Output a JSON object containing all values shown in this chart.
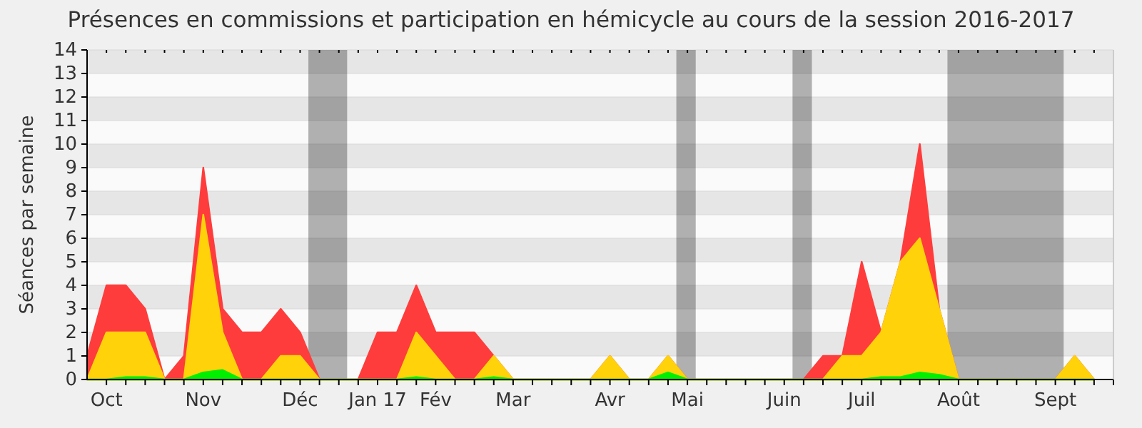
{
  "chart_data": {
    "type": "area",
    "title": "Présences en commissions et participation en hémicycle au cours de la session 2016-2017",
    "ylabel": "Séances par semaine",
    "x": [
      "2016-09-28",
      "2016-10-05",
      "2016-10-12",
      "2016-10-19",
      "2016-10-26",
      "2016-11-02",
      "2016-11-09",
      "2016-11-16",
      "2016-11-23",
      "2016-11-30",
      "2016-12-07",
      "2016-12-14",
      "2016-12-21",
      "2016-12-28",
      "2017-01-04",
      "2017-01-11",
      "2017-01-18",
      "2017-01-25",
      "2017-02-01",
      "2017-02-08",
      "2017-02-15",
      "2017-02-22",
      "2017-03-01",
      "2017-03-08",
      "2017-03-15",
      "2017-03-22",
      "2017-03-29",
      "2017-04-05",
      "2017-04-12",
      "2017-04-19",
      "2017-04-26",
      "2017-05-03",
      "2017-05-10",
      "2017-05-17",
      "2017-05-24",
      "2017-05-31",
      "2017-06-07",
      "2017-06-14",
      "2017-06-21",
      "2017-06-28",
      "2017-07-05",
      "2017-07-12",
      "2017-07-19",
      "2017-07-26",
      "2017-08-02",
      "2017-08-09",
      "2017-08-16",
      "2017-08-23",
      "2017-08-30",
      "2017-09-06",
      "2017-09-13",
      "2017-09-20",
      "2017-09-27"
    ],
    "xlim": [
      "2016-09-28",
      "2017-10-04"
    ],
    "xticks": [
      {
        "value": "2016-10-05",
        "label": "Oct"
      },
      {
        "value": "2016-10-12",
        "label": null
      },
      {
        "value": "2016-10-19",
        "label": null
      },
      {
        "value": "2016-10-26",
        "label": null
      },
      {
        "value": "2016-11-02",
        "label": null
      },
      {
        "value": "2016-11-09",
        "label": "Nov"
      },
      {
        "value": "2016-11-16",
        "label": null
      },
      {
        "value": "2016-11-23",
        "label": null
      },
      {
        "value": "2016-11-30",
        "label": null
      },
      {
        "value": "2016-12-07",
        "label": null
      },
      {
        "value": "2016-12-14",
        "label": "Déc"
      },
      {
        "value": "2016-12-21",
        "label": null
      },
      {
        "value": "2016-12-28",
        "label": null
      },
      {
        "value": "2017-01-04",
        "label": null
      },
      {
        "value": "2017-01-11",
        "label": "Jan 17"
      },
      {
        "value": "2017-01-18",
        "label": null
      },
      {
        "value": "2017-01-25",
        "label": null
      },
      {
        "value": "2017-02-01",
        "label": "Fév"
      },
      {
        "value": "2017-02-08",
        "label": null
      },
      {
        "value": "2017-02-15",
        "label": null
      },
      {
        "value": "2017-02-22",
        "label": null
      },
      {
        "value": "2017-03-01",
        "label": "Mar"
      },
      {
        "value": "2017-03-08",
        "label": null
      },
      {
        "value": "2017-03-15",
        "label": null
      },
      {
        "value": "2017-03-22",
        "label": null
      },
      {
        "value": "2017-03-29",
        "label": null
      },
      {
        "value": "2017-04-05",
        "label": "Avr"
      },
      {
        "value": "2017-04-12",
        "label": null
      },
      {
        "value": "2017-04-19",
        "label": null
      },
      {
        "value": "2017-04-26",
        "label": null
      },
      {
        "value": "2017-05-03",
        "label": "Mai"
      },
      {
        "value": "2017-05-10",
        "label": null
      },
      {
        "value": "2017-05-17",
        "label": null
      },
      {
        "value": "2017-05-24",
        "label": null
      },
      {
        "value": "2017-05-31",
        "label": null
      },
      {
        "value": "2017-06-07",
        "label": "Juin"
      },
      {
        "value": "2017-06-14",
        "label": null
      },
      {
        "value": "2017-06-21",
        "label": null
      },
      {
        "value": "2017-06-28",
        "label": null
      },
      {
        "value": "2017-07-05",
        "label": "Juil"
      },
      {
        "value": "2017-07-12",
        "label": null
      },
      {
        "value": "2017-07-19",
        "label": null
      },
      {
        "value": "2017-07-26",
        "label": null
      },
      {
        "value": "2017-08-02",
        "label": null
      },
      {
        "value": "2017-08-09",
        "label": "Août"
      },
      {
        "value": "2017-08-16",
        "label": null
      },
      {
        "value": "2017-08-23",
        "label": null
      },
      {
        "value": "2017-08-30",
        "label": null
      },
      {
        "value": "2017-09-06",
        "label": null
      },
      {
        "value": "2017-09-13",
        "label": "Sept"
      },
      {
        "value": "2017-09-20",
        "label": null
      },
      {
        "value": "2017-09-27",
        "label": null
      },
      {
        "value": "2017-10-04",
        "label": null
      }
    ],
    "ylim": [
      0,
      14
    ],
    "yticks": [
      0,
      1,
      2,
      3,
      4,
      5,
      6,
      7,
      8,
      9,
      10,
      11,
      12,
      13,
      14
    ],
    "grid": "y",
    "bands": [
      {
        "axis": "x",
        "from": "2016-12-17",
        "to": "2016-12-31",
        "color": "#b4b4b4"
      },
      {
        "axis": "x",
        "from": "2017-04-29",
        "to": "2017-05-06",
        "color": "#b4b4b4"
      },
      {
        "axis": "x",
        "from": "2017-06-10",
        "to": "2017-06-17",
        "color": "#b4b4b4"
      },
      {
        "axis": "x",
        "from": "2017-08-05",
        "to": "2017-09-16",
        "color": "#b4b4b4"
      }
    ],
    "series": [
      {
        "color": "#ff3c3c",
        "values": [
          1,
          4,
          4,
          3,
          0,
          1,
          9,
          3,
          2,
          2,
          3,
          2,
          0,
          0,
          0,
          2,
          2,
          4,
          2,
          2,
          2,
          1,
          0,
          0,
          0,
          0,
          0,
          1,
          0,
          0,
          1,
          0,
          0,
          0,
          0,
          0,
          0,
          0,
          1,
          1,
          5,
          2,
          5,
          10,
          3,
          0,
          0,
          0,
          0,
          0,
          0,
          1,
          0
        ]
      },
      {
        "color": "#ffd20a",
        "values": [
          0,
          2,
          2,
          2,
          0,
          0,
          7,
          2,
          0,
          0,
          1,
          1,
          0,
          0,
          0,
          0,
          0,
          2,
          1,
          0,
          0,
          1,
          0,
          0,
          0,
          0,
          0,
          1,
          0,
          0,
          1,
          0,
          0,
          0,
          0,
          0,
          0,
          0,
          0,
          1,
          1,
          2,
          5,
          6,
          3,
          0,
          0,
          0,
          0,
          0,
          0,
          1,
          0
        ]
      },
      {
        "color": "#00f000",
        "values": [
          0,
          0,
          0.1,
          0.1,
          0,
          0,
          0.3,
          0.4,
          0,
          0,
          0,
          0,
          0,
          0,
          0,
          0,
          0,
          0.1,
          0,
          0,
          0,
          0.1,
          0,
          0,
          0,
          0,
          0,
          0,
          0,
          0,
          0.3,
          0,
          0,
          0,
          0,
          0,
          0,
          0,
          0,
          0,
          0,
          0.1,
          0.1,
          0.3,
          0.2,
          0,
          0,
          0,
          0,
          0,
          0,
          0,
          0
        ]
      }
    ]
  }
}
